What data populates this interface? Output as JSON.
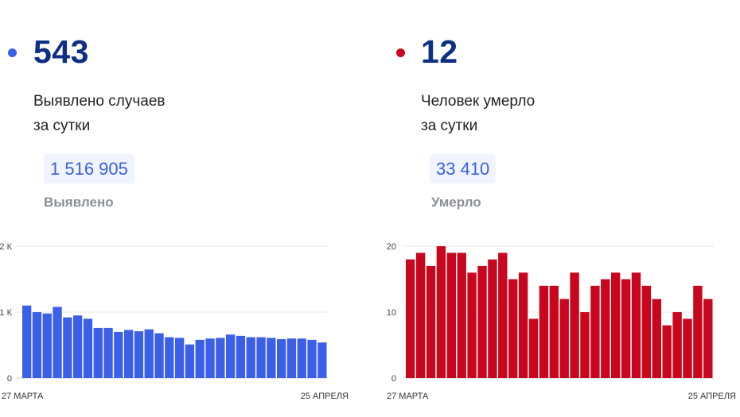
{
  "cases": {
    "count": "543",
    "desc_line1": "Выявлено случаев",
    "desc_line2": "за сутки",
    "total": "1 516 905",
    "total_caption": "Выявлено",
    "color": "#3b5fe6",
    "number_color": "#0d2f86",
    "total_color": "#3b5fe6"
  },
  "deaths": {
    "count": "12",
    "desc_line1": "Человек умерло",
    "desc_line2": "за сутки",
    "total": "33 410",
    "total_caption": "Умерло",
    "color": "#c8071f",
    "number_color": "#0d2f86",
    "total_color": "#3b5fe6"
  },
  "chart_data": [
    {
      "type": "bar",
      "x_start_label": "27 МАРТА",
      "x_end_label": "25 АПРЕЛЯ",
      "y_ticks": [
        "0",
        "1 К",
        "2 К"
      ],
      "y_tick_values": [
        0,
        1000,
        2000
      ],
      "ylim": [
        0,
        2000
      ],
      "grid": true,
      "color": "#3b5fe6",
      "values": [
        1100,
        1000,
        980,
        1080,
        920,
        950,
        900,
        760,
        760,
        700,
        730,
        710,
        740,
        680,
        620,
        610,
        510,
        580,
        600,
        610,
        660,
        640,
        620,
        620,
        610,
        590,
        600,
        600,
        580,
        540
      ]
    },
    {
      "type": "bar",
      "x_start_label": "27 МАРТА",
      "x_end_label": "25 АПРЕЛЯ",
      "y_ticks": [
        "0",
        "10",
        "20"
      ],
      "y_tick_values": [
        0,
        10,
        20
      ],
      "ylim": [
        0,
        20
      ],
      "grid": true,
      "color": "#c8071f",
      "values": [
        18,
        19,
        17,
        20,
        19,
        19,
        16,
        17,
        18,
        19,
        15,
        16,
        9,
        14,
        14,
        12,
        16,
        10,
        14,
        15,
        16,
        15,
        16,
        14,
        12,
        8,
        10,
        9,
        14,
        12
      ]
    }
  ]
}
